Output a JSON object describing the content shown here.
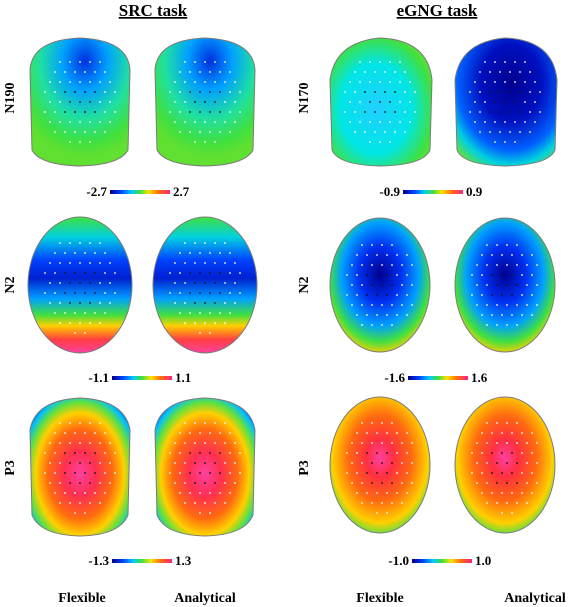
{
  "panels": [
    {
      "name": "SRC task",
      "components": [
        "N190",
        "N2",
        "P3"
      ],
      "scales": [
        {
          "min": "-2.7",
          "max": "2.7"
        },
        {
          "min": "-1.1",
          "max": "1.1"
        },
        {
          "min": "-1.3",
          "max": "1.3"
        }
      ]
    },
    {
      "name": "eGNG task",
      "components": [
        "N170",
        "N2",
        "P3"
      ],
      "scales": [
        {
          "min": "-0.9",
          "max": "0.9"
        },
        {
          "min": "-1.6",
          "max": "1.6"
        },
        {
          "min": "-1.0",
          "max": "1.0"
        }
      ]
    }
  ],
  "conditions": [
    "Flexible",
    "Analytical",
    "Flexible",
    "Analytical"
  ],
  "colormap": [
    "#00008b",
    "#0030ff",
    "#00a0ff",
    "#00e6e6",
    "#40e040",
    "#c8e020",
    "#ffd000",
    "#ff7a10",
    "#ff3030",
    "#ff40a0"
  ]
}
